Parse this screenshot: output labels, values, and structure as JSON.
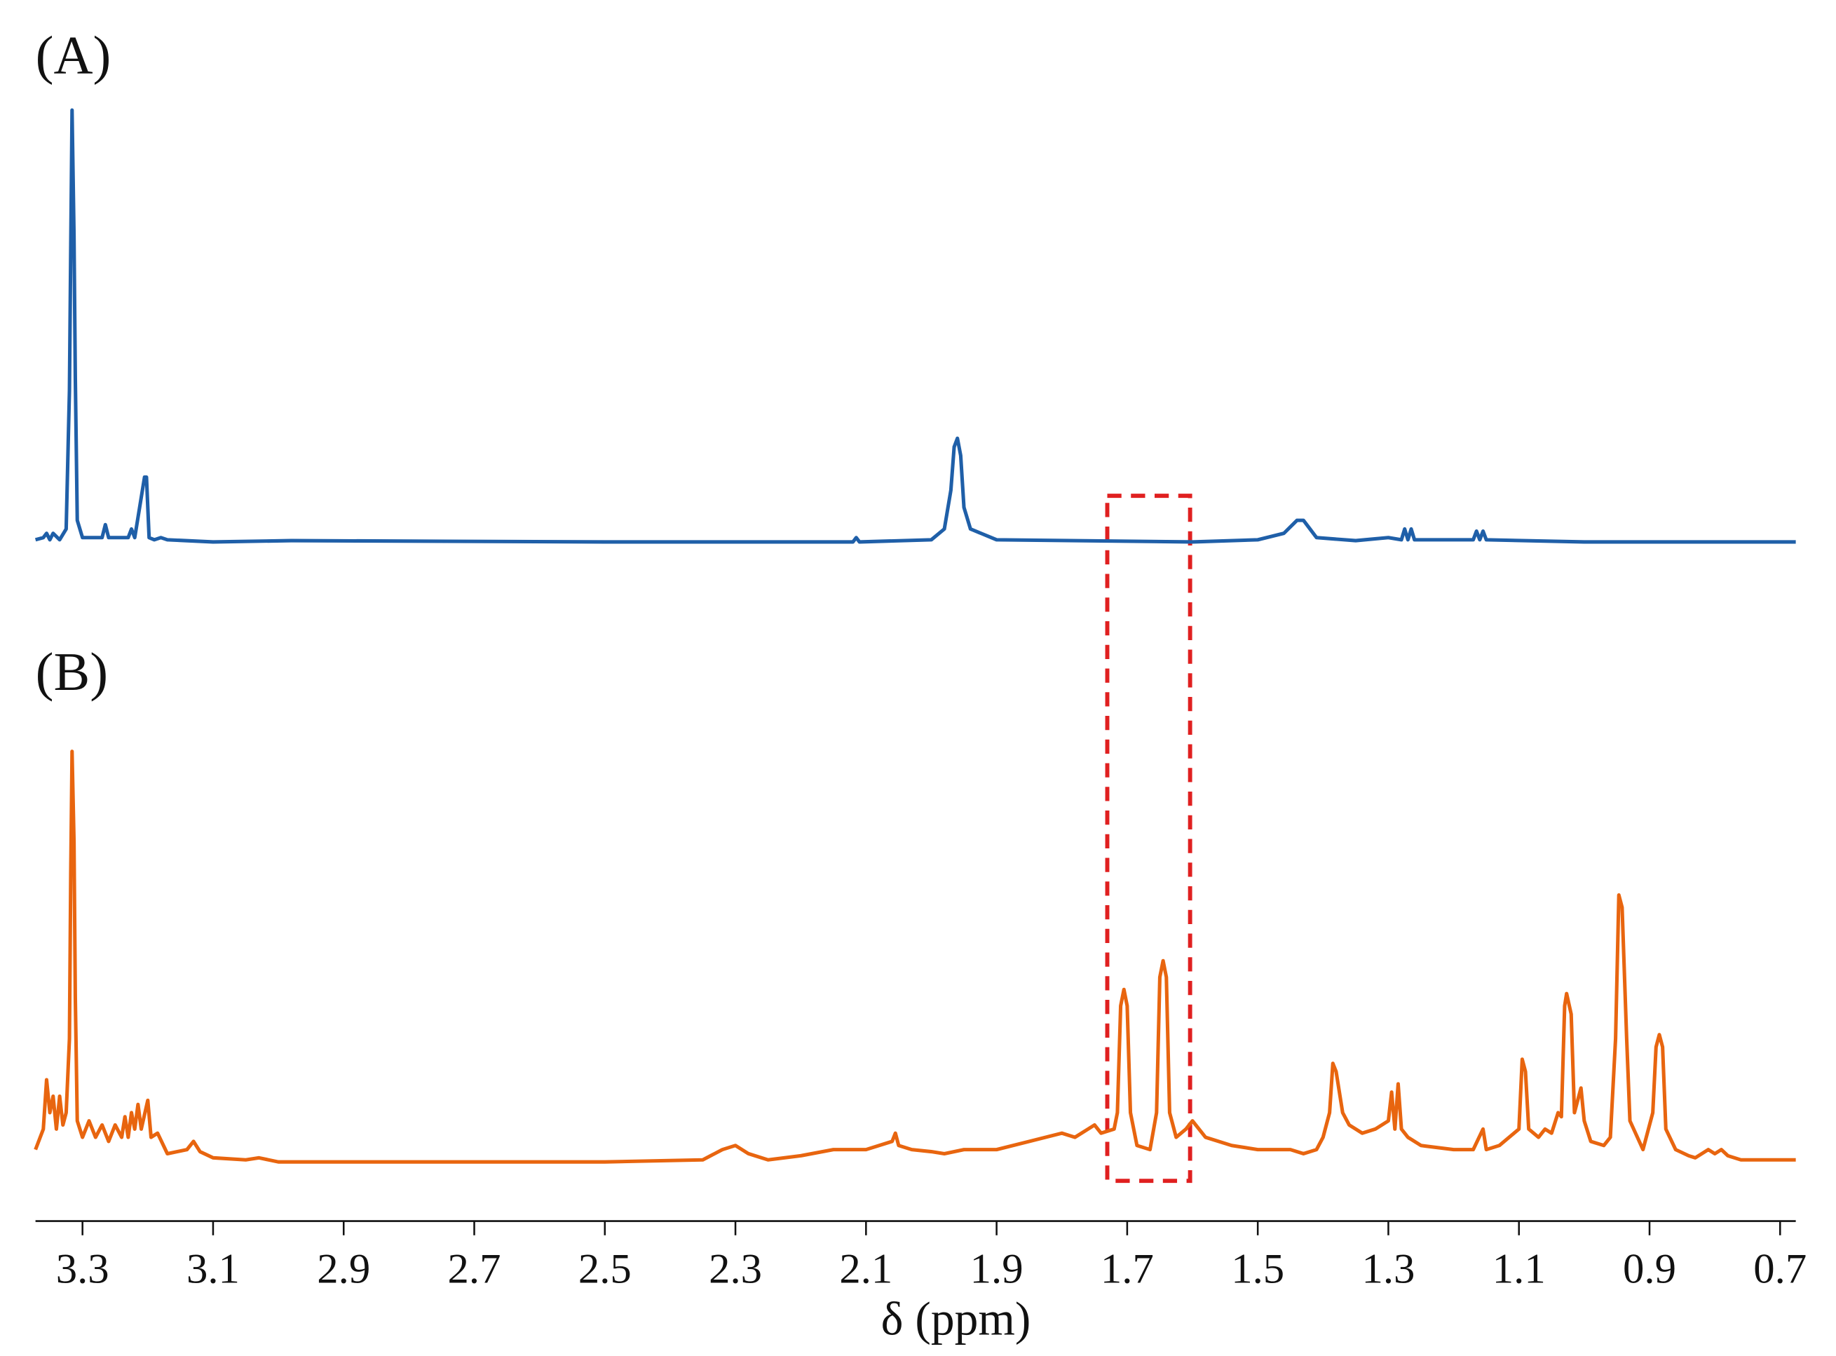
{
  "chart_data": {
    "type": "line",
    "xlabel": "δ (ppm)",
    "xlim": [
      3.372,
      0.676
    ],
    "xticks": [
      3.3,
      3.1,
      2.9,
      2.7,
      2.5,
      2.3,
      2.1,
      1.9,
      1.7,
      1.5,
      1.3,
      1.1,
      0.9,
      0.7
    ],
    "ylim": [
      0,
      100
    ],
    "series": [
      {
        "name": "(A)",
        "color": "#1f5fa8",
        "x": [
          3.372,
          3.36,
          3.355,
          3.35,
          3.345,
          3.335,
          3.325,
          3.32,
          3.318,
          3.316,
          3.313,
          3.311,
          3.308,
          3.3,
          3.27,
          3.265,
          3.26,
          3.23,
          3.225,
          3.22,
          3.205,
          3.202,
          3.198,
          3.19,
          3.18,
          3.17,
          3.1,
          2.98,
          2.5,
          2.12,
          2.115,
          2.11,
          2.0,
          1.98,
          1.97,
          1.965,
          1.96,
          1.955,
          1.95,
          1.94,
          1.9,
          1.6,
          1.5,
          1.46,
          1.44,
          1.43,
          1.42,
          1.41,
          1.35,
          1.3,
          1.28,
          1.275,
          1.27,
          1.265,
          1.26,
          1.17,
          1.165,
          1.16,
          1.155,
          1.15,
          1.0,
          0.676
        ],
        "values": [
          0.5,
          1,
          2,
          0.5,
          2,
          0.5,
          3,
          35,
          68,
          100,
          71,
          38,
          5,
          1,
          1,
          4,
          1,
          1,
          3,
          1,
          15,
          15,
          1,
          0.5,
          1,
          0.5,
          0,
          0.3,
          0,
          0,
          1,
          0,
          0.5,
          3,
          12,
          22,
          24,
          20,
          8,
          3,
          0.5,
          0,
          0.5,
          2,
          5,
          5,
          3,
          1,
          0.3,
          1,
          0.5,
          3,
          0.5,
          3,
          0.5,
          0.5,
          2.5,
          0.5,
          2.5,
          0.5,
          0,
          0
        ]
      },
      {
        "name": "(B)",
        "color": "#e8650f",
        "x": [
          3.372,
          3.36,
          3.355,
          3.35,
          3.345,
          3.34,
          3.335,
          3.33,
          3.325,
          3.32,
          3.318,
          3.316,
          3.313,
          3.311,
          3.308,
          3.3,
          3.29,
          3.28,
          3.27,
          3.26,
          3.25,
          3.24,
          3.235,
          3.23,
          3.225,
          3.22,
          3.215,
          3.21,
          3.2,
          3.195,
          3.185,
          3.17,
          3.14,
          3.13,
          3.12,
          3.1,
          3.05,
          3.03,
          3.0,
          2.8,
          2.5,
          2.35,
          2.32,
          2.3,
          2.28,
          2.25,
          2.2,
          2.15,
          2.1,
          2.06,
          2.055,
          2.05,
          2.03,
          2.0,
          1.98,
          1.95,
          1.92,
          1.9,
          1.85,
          1.8,
          1.78,
          1.76,
          1.75,
          1.74,
          1.72,
          1.715,
          1.71,
          1.705,
          1.7,
          1.695,
          1.685,
          1.665,
          1.655,
          1.65,
          1.645,
          1.64,
          1.635,
          1.625,
          1.61,
          1.6,
          1.58,
          1.54,
          1.5,
          1.45,
          1.43,
          1.41,
          1.4,
          1.39,
          1.385,
          1.38,
          1.37,
          1.36,
          1.34,
          1.32,
          1.3,
          1.295,
          1.29,
          1.285,
          1.28,
          1.27,
          1.25,
          1.2,
          1.17,
          1.155,
          1.15,
          1.13,
          1.1,
          1.095,
          1.09,
          1.085,
          1.07,
          1.06,
          1.05,
          1.04,
          1.035,
          1.03,
          1.027,
          1.02,
          1.015,
          1.005,
          1.0,
          0.99,
          0.97,
          0.96,
          0.952,
          0.947,
          0.942,
          0.935,
          0.93,
          0.91,
          0.895,
          0.89,
          0.885,
          0.88,
          0.875,
          0.86,
          0.84,
          0.83,
          0.81,
          0.8,
          0.79,
          0.78,
          0.76,
          0.676
        ],
        "values": [
          3,
          8,
          20,
          12,
          16,
          8,
          16,
          9,
          12,
          30,
          70,
          100,
          78,
          40,
          10,
          6,
          10,
          6,
          9,
          5,
          9,
          6,
          11,
          6,
          12,
          8,
          14,
          8,
          15,
          6,
          7,
          2,
          3,
          5,
          2.5,
          1,
          0.5,
          1,
          0,
          0,
          0,
          0.5,
          3,
          4,
          2,
          0.5,
          1.5,
          3,
          3,
          5,
          7,
          4,
          3,
          2.5,
          2,
          3,
          3,
          3,
          5,
          7,
          6,
          8,
          9,
          7,
          8,
          12,
          38,
          42,
          38,
          12,
          4,
          3,
          12,
          45,
          49,
          45,
          12,
          6,
          8,
          10,
          6,
          4,
          3,
          3,
          2,
          3,
          6,
          12,
          24,
          22,
          12,
          9,
          7,
          8,
          10,
          17,
          8,
          19,
          8,
          6,
          4,
          3,
          3,
          8,
          3,
          4,
          8,
          25,
          22,
          8,
          6,
          8,
          7,
          12,
          11,
          38,
          41,
          36,
          12,
          18,
          10,
          5,
          4,
          6,
          30,
          65,
          62,
          30,
          10,
          3,
          12,
          28,
          31,
          28,
          8,
          3,
          1.5,
          1,
          3,
          2,
          3,
          1.5,
          0.5,
          0.5
        ]
      }
    ]
  }
}
